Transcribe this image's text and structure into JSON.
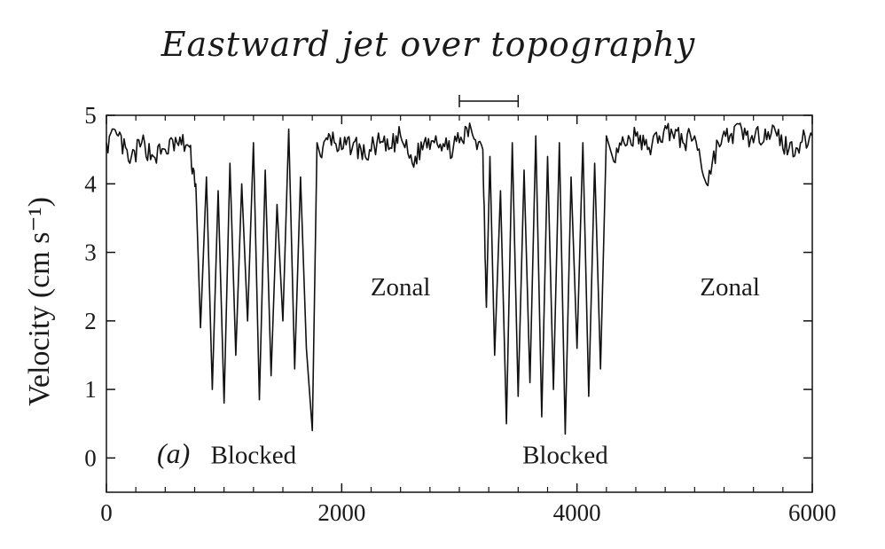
{
  "chart_data": {
    "type": "line",
    "title": "Eastward jet over topography",
    "ylabel": "Velocity (cm s⁻¹)",
    "xlabel": "",
    "xlim": [
      0,
      6000
    ],
    "ylim": [
      -0.5,
      5
    ],
    "x_ticks": [
      0,
      2000,
      4000,
      6000
    ],
    "x_tick_labels": [
      "0",
      "2000",
      "4000",
      "6000"
    ],
    "y_ticks": [
      0,
      1,
      2,
      3,
      4,
      5
    ],
    "y_tick_labels": [
      "0",
      "1",
      "2",
      "3",
      "4",
      "5"
    ],
    "grid": false,
    "line_color": "#111111",
    "panel_label": "(a)",
    "interval_bar": {
      "x_start": 3000,
      "x_end": 3500
    },
    "annotations": [
      {
        "text": "Zonal",
        "x": 2500,
        "y": 2.5
      },
      {
        "text": "Zonal",
        "x": 5300,
        "y": 2.5
      },
      {
        "text": "Blocked",
        "x": 1250,
        "y": 0.05
      },
      {
        "text": "Blocked",
        "x": 3900,
        "y": 0.05
      }
    ],
    "series": [
      {
        "regimes": [
          {
            "regime": "zonal",
            "x_start": 0,
            "x_end": 760,
            "mean": 4.5
          },
          {
            "regime": "blocked",
            "x_start": 760,
            "x_end": 1820,
            "min": 0.4,
            "max": 4.8
          },
          {
            "regime": "zonal",
            "x_start": 1820,
            "x_end": 3230,
            "mean": 4.55
          },
          {
            "regime": "blocked",
            "x_start": 3230,
            "x_end": 4300,
            "min": 0.35,
            "max": 4.7
          },
          {
            "regime": "zonal",
            "x_start": 4300,
            "x_end": 6000,
            "mean": 4.6
          }
        ],
        "x": [
          0,
          100,
          200,
          300,
          400,
          500,
          600,
          700,
          760,
          800,
          850,
          900,
          950,
          1000,
          1050,
          1100,
          1150,
          1200,
          1250,
          1300,
          1350,
          1400,
          1450,
          1500,
          1550,
          1600,
          1650,
          1700,
          1750,
          1790,
          1820,
          1900,
          2000,
          2100,
          2200,
          2300,
          2400,
          2500,
          2600,
          2700,
          2800,
          2900,
          3000,
          3100,
          3200,
          3230,
          3260,
          3300,
          3350,
          3400,
          3450,
          3500,
          3550,
          3600,
          3650,
          3700,
          3750,
          3800,
          3850,
          3900,
          3950,
          4000,
          4050,
          4100,
          4150,
          4200,
          4250,
          4300,
          4400,
          4500,
          4600,
          4700,
          4800,
          4900,
          5000,
          5100,
          5200,
          5300,
          5400,
          5500,
          5600,
          5700,
          5800,
          5900,
          6000
        ],
        "y": [
          4.6,
          4.7,
          4.3,
          4.6,
          4.4,
          4.5,
          4.6,
          4.55,
          4.0,
          1.9,
          4.1,
          1.0,
          3.9,
          0.8,
          4.3,
          1.5,
          4.0,
          2.0,
          4.6,
          0.85,
          4.2,
          1.2,
          3.7,
          2.0,
          4.8,
          1.3,
          4.1,
          1.6,
          0.4,
          4.6,
          4.4,
          4.7,
          4.5,
          4.6,
          4.4,
          4.6,
          4.5,
          4.7,
          4.3,
          4.6,
          4.7,
          4.5,
          4.6,
          4.8,
          4.5,
          2.2,
          4.4,
          1.5,
          3.9,
          0.5,
          4.6,
          0.9,
          4.2,
          1.1,
          4.7,
          0.6,
          4.4,
          1.0,
          4.6,
          0.35,
          4.1,
          1.6,
          4.6,
          0.9,
          4.3,
          1.3,
          4.7,
          4.4,
          4.6,
          4.7,
          4.5,
          4.7,
          4.8,
          4.6,
          4.7,
          4.0,
          4.6,
          4.7,
          4.8,
          4.6,
          4.8,
          4.7,
          4.5,
          4.6,
          4.7
        ]
      }
    ]
  }
}
